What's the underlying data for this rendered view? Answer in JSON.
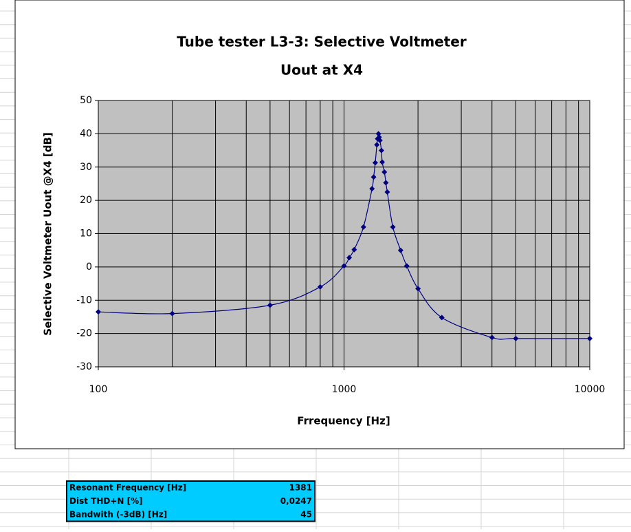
{
  "chart_data": {
    "type": "line",
    "title": "Tube tester L3-3: Selective Voltmeter",
    "subtitle": "Uout at X4",
    "xlabel": "Frrequency [Hz]",
    "ylabel": "Selective Voltmeter Uout @X4 [dB]",
    "xscale": "log",
    "x": [
      100,
      200,
      500,
      800,
      1000,
      1050,
      1100,
      1200,
      1300,
      1320,
      1340,
      1360,
      1370,
      1381,
      1390,
      1400,
      1420,
      1430,
      1460,
      1480,
      1500,
      1580,
      1700,
      1800,
      2000,
      2500,
      4000,
      5000,
      10000
    ],
    "series": [
      {
        "name": "Uout at X4",
        "color": "#000080",
        "values": [
          -13.5,
          -14,
          -11.5,
          -6,
          0.3,
          2.8,
          5.2,
          12,
          23.5,
          27,
          31.3,
          36.7,
          38.5,
          40,
          39,
          38,
          35,
          31.5,
          28.5,
          25.3,
          22.5,
          12,
          5,
          0.3,
          -6.5,
          -15.2,
          -21.2,
          -21.5,
          -21.5
        ]
      }
    ],
    "xlim": [
      100,
      10000
    ],
    "xticks": [
      100,
      1000,
      10000
    ],
    "xminorticks": [
      200,
      300,
      400,
      500,
      600,
      700,
      800,
      900,
      2000,
      3000,
      4000,
      5000,
      6000,
      7000,
      8000,
      9000
    ],
    "ylim": [
      -30,
      50
    ],
    "yticks": [
      -30,
      -20,
      -10,
      0,
      10,
      20,
      30,
      40,
      50
    ],
    "grid": true,
    "plot_background": "#c0c0c0"
  },
  "table": {
    "color": "#00ccff",
    "rows": [
      [
        "Resonant Frequency [Hz]",
        1381
      ],
      [
        "Dist THD+N [%]",
        "0,0247"
      ],
      [
        "Bandwith (-3dB) [Hz]",
        45
      ]
    ]
  }
}
